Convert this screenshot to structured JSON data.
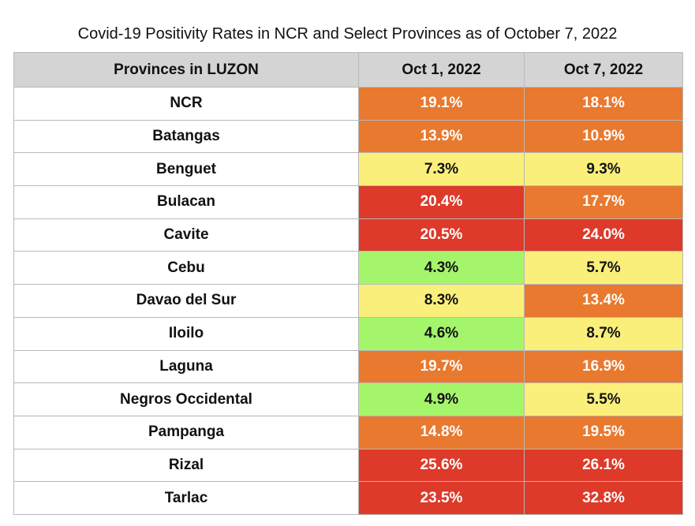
{
  "chart_data": {
    "type": "table",
    "title": "Covid-19 Positivity Rates in NCR and Select Provinces as of October 7, 2022",
    "columns": [
      "Provinces in LUZON",
      "Oct 1, 2022",
      "Oct 7, 2022"
    ],
    "rows": [
      {
        "province": "NCR",
        "oct1": "19.1%",
        "oct7": "18.1%"
      },
      {
        "province": "Batangas",
        "oct1": "13.9%",
        "oct7": "10.9%"
      },
      {
        "province": "Benguet",
        "oct1": "7.3%",
        "oct7": "9.3%"
      },
      {
        "province": "Bulacan",
        "oct1": "20.4%",
        "oct7": "17.7%"
      },
      {
        "province": "Cavite",
        "oct1": "20.5%",
        "oct7": "24.0%"
      },
      {
        "province": "Cebu",
        "oct1": "4.3%",
        "oct7": "5.7%"
      },
      {
        "province": "Davao del Sur",
        "oct1": "8.3%",
        "oct7": "13.4%"
      },
      {
        "province": "Iloilo",
        "oct1": "4.6%",
        "oct7": "8.7%"
      },
      {
        "province": "Laguna",
        "oct1": "19.7%",
        "oct7": "16.9%"
      },
      {
        "province": "Negros Occidental",
        "oct1": "4.9%",
        "oct7": "5.5%"
      },
      {
        "province": "Pampanga",
        "oct1": "14.8%",
        "oct7": "19.5%"
      },
      {
        "province": "Rizal",
        "oct1": "25.6%",
        "oct7": "26.1%"
      },
      {
        "province": "Tarlac",
        "oct1": "23.5%",
        "oct7": "32.8%"
      }
    ],
    "colors": {
      "green": "#a4f56c",
      "yellow": "#fbef7c",
      "orange": "#e8792f",
      "red": "#dd3a2a",
      "header": "#d4d4d4"
    }
  }
}
